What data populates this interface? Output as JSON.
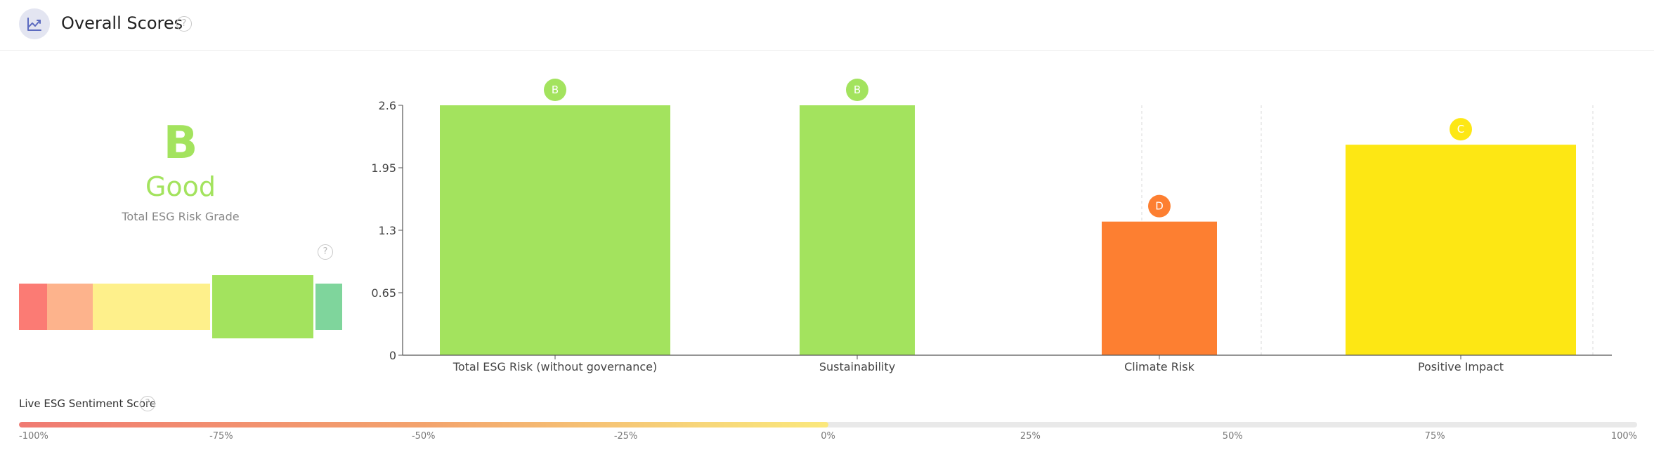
{
  "header": {
    "title": "Overall Scores",
    "icon": "chart-trend-icon",
    "help_icon": "help-icon",
    "help_glyph": "?"
  },
  "grade": {
    "letter": "B",
    "label": "Good",
    "caption": "Total ESG Risk Grade",
    "color": "#a3e35e"
  },
  "grade_scale": {
    "segments": [
      {
        "grade": "E",
        "color": "#fb7b74",
        "active": false
      },
      {
        "grade": "D",
        "color": "#fdb38c",
        "active": false
      },
      {
        "grade": "C",
        "color": "#fef08b",
        "active": false
      },
      {
        "grade": "B",
        "color": "#a3e35e",
        "active": true
      },
      {
        "grade": "A",
        "color": "#7fd59c",
        "active": false
      }
    ]
  },
  "chart_data": {
    "type": "bar",
    "categories": [
      "Total ESG Risk (without governance)",
      "Sustainability",
      "Climate Risk",
      "Positive Impact"
    ],
    "values": [
      2.6,
      2.6,
      1.39,
      2.19
    ],
    "grades": [
      "B",
      "B",
      "D",
      "C"
    ],
    "colors": [
      "#a3e35e",
      "#a3e35e",
      "#fd7f31",
      "#fde714"
    ],
    "yticks": [
      "0",
      "0.65",
      "1.3",
      "1.95",
      "2.6"
    ],
    "ylim": [
      0,
      2.6
    ],
    "title": "",
    "xlabel": "",
    "ylabel": "",
    "legend": "none"
  },
  "sentiment": {
    "label": "Live ESG Sentiment Score",
    "value_percent": 0,
    "ticks": [
      "-100%",
      "-75%",
      "-50%",
      "-25%",
      "0%",
      "25%",
      "50%",
      "75%",
      "100%"
    ]
  }
}
